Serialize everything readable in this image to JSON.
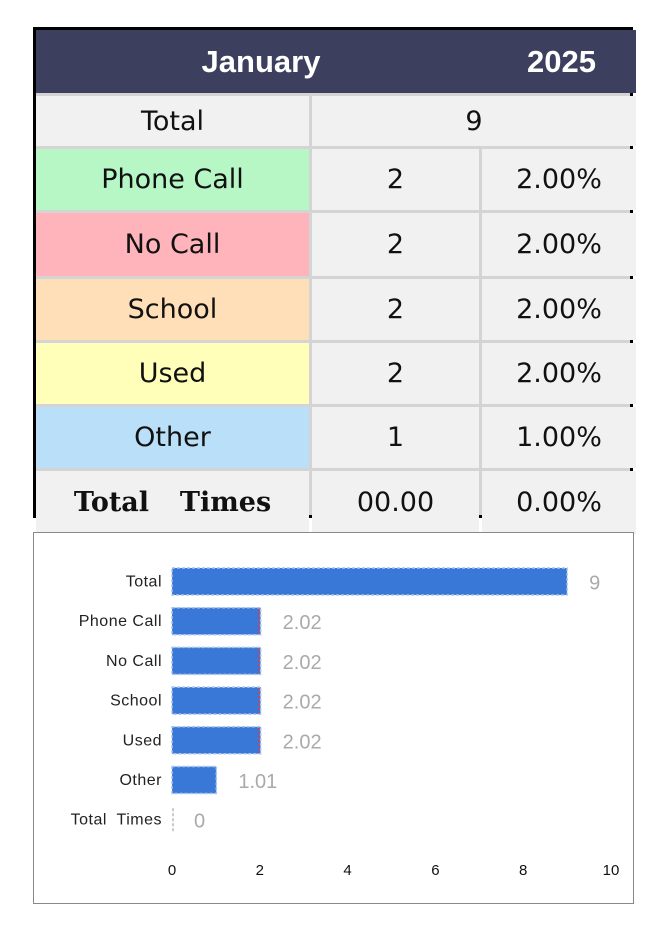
{
  "table": {
    "month": "January",
    "year": "2025",
    "total_label": "Total",
    "total_value": "9",
    "rows": [
      {
        "label": "Phone Call",
        "count": "2",
        "percent": "2.00%",
        "color": "#b7f7c6"
      },
      {
        "label": "No Call",
        "count": "2",
        "percent": "2.00%",
        "color": "#ffb3ba"
      },
      {
        "label": "School",
        "count": "2",
        "percent": "2.00%",
        "color": "#ffdfb8"
      },
      {
        "label": "Used",
        "count": "2",
        "percent": "2.00%",
        "color": "#ffffb9"
      },
      {
        "label": "Other",
        "count": "1",
        "percent": "1.00%",
        "color": "#badff9"
      }
    ],
    "times_label": "Total  Times",
    "times_value": "00.00",
    "times_percent": "0.00%"
  },
  "colors": {
    "header_bg": "#3d3f5f",
    "bar_fill": "#3a78d8",
    "bar_marker": "#e53935",
    "value_label": "#aaaaaa"
  },
  "chart_data": {
    "type": "bar",
    "orientation": "horizontal",
    "categories": [
      "Total",
      "Phone Call",
      "No Call",
      "School",
      "Used",
      "Other",
      "Total  Times"
    ],
    "values": [
      9,
      2.02,
      2.02,
      2.02,
      2.02,
      1.01,
      0
    ],
    "value_labels": [
      "9",
      "2.02",
      "2.02",
      "2.02",
      "2.02",
      "1.01",
      "0"
    ],
    "xlim": [
      0,
      10
    ],
    "xticks": [
      "0",
      "2",
      "4",
      "6",
      "8",
      "10"
    ],
    "title": "",
    "xlabel": "",
    "ylabel": "",
    "grid": false,
    "legend": "none"
  }
}
